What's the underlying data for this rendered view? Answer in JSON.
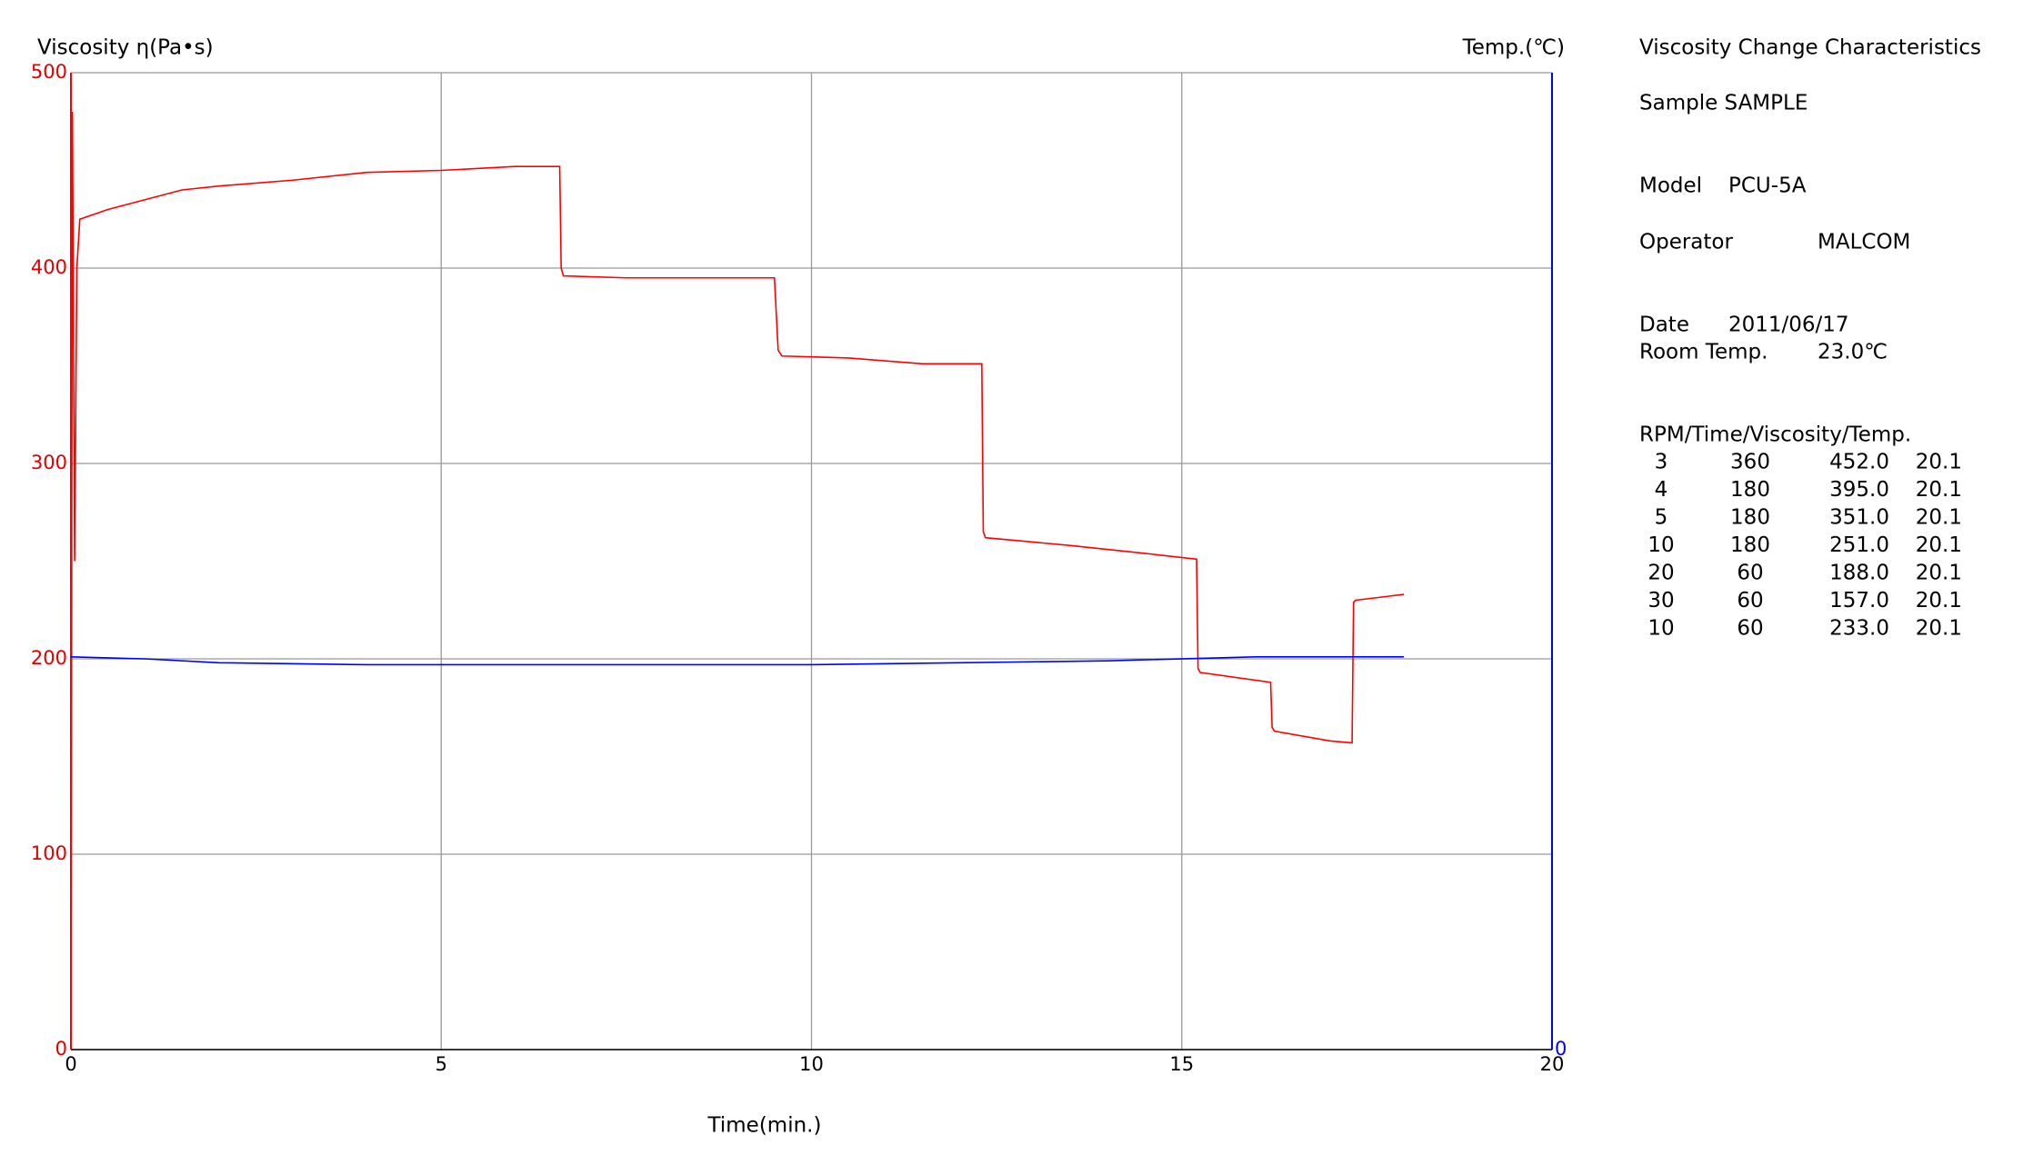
{
  "chart_data": {
    "type": "line",
    "y_label": "Viscosity η(Pa•s)",
    "y2_label": "Temp.(℃)",
    "x_label": "Time(min.)",
    "xlim": [
      0,
      20
    ],
    "xticks": [
      0,
      5,
      10,
      15,
      20
    ],
    "ylim": [
      0,
      500
    ],
    "yticks": [
      0,
      100,
      200,
      300,
      400,
      500
    ],
    "y2lim": [
      0,
      50
    ],
    "y2ticks": [
      0
    ],
    "grid": true,
    "series": [
      {
        "color": "#ff0000",
        "x": [
          0,
          0.02,
          0.05,
          0.08,
          0.12,
          0.5,
          1,
          1.5,
          2,
          3,
          4,
          5,
          6,
          6.6,
          6.62,
          6.65,
          7.5,
          8.5,
          9.5,
          9.55,
          9.6,
          10.5,
          11.5,
          12.3,
          12.32,
          12.35,
          13.5,
          14.5,
          15.2,
          15.22,
          15.25,
          16.2,
          16.22,
          16.25,
          17.0,
          17.3,
          17.32,
          17.35,
          18.0
        ],
        "values": [
          0,
          480,
          250,
          400,
          425,
          430,
          435,
          440,
          442,
          445,
          449,
          450,
          452,
          452,
          400,
          396,
          395,
          395,
          395,
          358,
          355,
          354,
          351,
          351,
          265,
          262,
          258,
          254,
          251,
          195,
          193,
          188,
          165,
          163,
          158,
          157,
          229,
          230,
          233
        ]
      },
      {
        "color": "#0000ff",
        "axis": "y2",
        "x": [
          0,
          1,
          2,
          4,
          6,
          8,
          10,
          12,
          14,
          16,
          18
        ],
        "values": [
          20.1,
          20.0,
          19.8,
          19.7,
          19.7,
          19.7,
          19.7,
          19.8,
          19.9,
          20.1,
          20.1
        ]
      }
    ]
  },
  "info": {
    "title": "Viscosity Change Characteristics",
    "sample": "Sample SAMPLE",
    "model_label": "Model",
    "model": "PCU-5A",
    "operator_label": "Operator",
    "operator": "MALCOM",
    "date_label": "Date",
    "date": "2011/06/17",
    "room_label": "Room Temp.",
    "room": "23.0℃",
    "table_header": "RPM/Time/Viscosity/Temp.",
    "rows": [
      [
        "3",
        "360",
        "452.0",
        "20.1"
      ],
      [
        "4",
        "180",
        "395.0",
        "20.1"
      ],
      [
        "5",
        "180",
        "351.0",
        "20.1"
      ],
      [
        "10",
        "180",
        "251.0",
        "20.1"
      ],
      [
        "20",
        "60",
        "188.0",
        "20.1"
      ],
      [
        "30",
        "60",
        "157.0",
        "20.1"
      ],
      [
        "10",
        "60",
        "233.0",
        "20.1"
      ]
    ]
  }
}
